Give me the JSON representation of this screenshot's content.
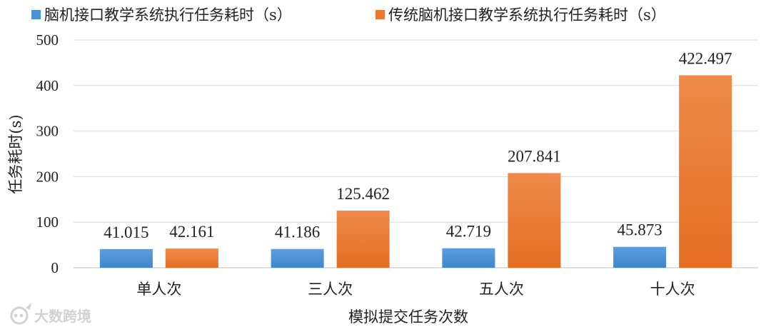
{
  "chart_data": {
    "type": "bar",
    "title": "",
    "xlabel": "模拟提交任务次数",
    "ylabel": "任务耗时(s)",
    "ylim": [
      0,
      500
    ],
    "yticks": [
      0,
      100,
      200,
      300,
      400,
      500
    ],
    "grid": true,
    "legend_position": "top",
    "categories": [
      "单人次",
      "三人次",
      "五人次",
      "十人次"
    ],
    "series": [
      {
        "name": "脑机接口教学系统执行任务耗时（s）",
        "values": [
          41.015,
          41.186,
          42.719,
          45.873
        ],
        "labels": [
          "41.015",
          "41.186",
          "42.719",
          "45.873"
        ],
        "color": "#4a90d2"
      },
      {
        "name": "传统脑机接口教学系统执行任务耗时（s）",
        "values": [
          42.161,
          125.462,
          207.841,
          422.497
        ],
        "labels": [
          "42.161",
          "125.462",
          "207.841",
          "422.497"
        ],
        "color": "#ea7a32"
      }
    ]
  },
  "watermark": "大数跨境"
}
